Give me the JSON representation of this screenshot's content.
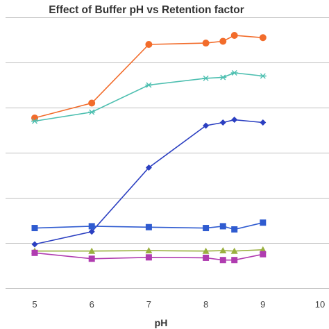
{
  "chart_data": {
    "type": "line",
    "title": "Effect of Buffer pH vs Retention factor",
    "xlabel": "pH",
    "ylabel": "",
    "xlim": [
      5,
      10
    ],
    "xticks": [
      5,
      6,
      7,
      8,
      9,
      10
    ],
    "xtick_labels": [
      "5",
      "6",
      "7",
      "8",
      "9",
      "10"
    ],
    "ylim": [
      0,
      6
    ],
    "ygrid": [
      0,
      1,
      2,
      3,
      4,
      5,
      6
    ],
    "grid": "horizontal",
    "legend": "none",
    "series": [
      {
        "color": "#f26c2b",
        "marker": "circle",
        "points": [
          [
            5,
            3.77
          ],
          [
            6,
            4.1
          ],
          [
            7,
            5.4
          ],
          [
            8,
            5.43
          ],
          [
            8.3,
            5.47
          ],
          [
            8.5,
            5.6
          ],
          [
            9,
            5.55
          ]
        ]
      },
      {
        "color": "#4dbfb0",
        "marker": "star",
        "points": [
          [
            5,
            3.7
          ],
          [
            6,
            3.9
          ],
          [
            7,
            4.5
          ],
          [
            8,
            4.65
          ],
          [
            8.3,
            4.67
          ],
          [
            8.5,
            4.77
          ],
          [
            9,
            4.7
          ]
        ]
      },
      {
        "color": "#2b3fc1",
        "marker": "diamond",
        "points": [
          [
            5,
            0.97
          ],
          [
            6,
            1.25
          ],
          [
            7,
            2.67
          ],
          [
            8,
            3.6
          ],
          [
            8.3,
            3.67
          ],
          [
            8.5,
            3.73
          ],
          [
            9,
            3.67
          ]
        ]
      },
      {
        "color": "#2f5bd0",
        "marker": "square",
        "points": [
          [
            5,
            1.33
          ],
          [
            6,
            1.37
          ],
          [
            7,
            1.35
          ],
          [
            8,
            1.33
          ],
          [
            8.3,
            1.37
          ],
          [
            8.5,
            1.3
          ],
          [
            9,
            1.45
          ]
        ]
      },
      {
        "color": "#9ab040",
        "marker": "triangle",
        "points": [
          [
            5,
            0.82
          ],
          [
            6,
            0.82
          ],
          [
            7,
            0.83
          ],
          [
            8,
            0.82
          ],
          [
            8.3,
            0.83
          ],
          [
            8.5,
            0.82
          ],
          [
            9,
            0.85
          ]
        ]
      },
      {
        "color": "#b03cb0",
        "marker": "square",
        "points": [
          [
            5,
            0.78
          ],
          [
            6,
            0.65
          ],
          [
            7,
            0.68
          ],
          [
            8,
            0.67
          ],
          [
            8.3,
            0.62
          ],
          [
            8.5,
            0.62
          ],
          [
            9,
            0.75
          ]
        ]
      }
    ]
  }
}
